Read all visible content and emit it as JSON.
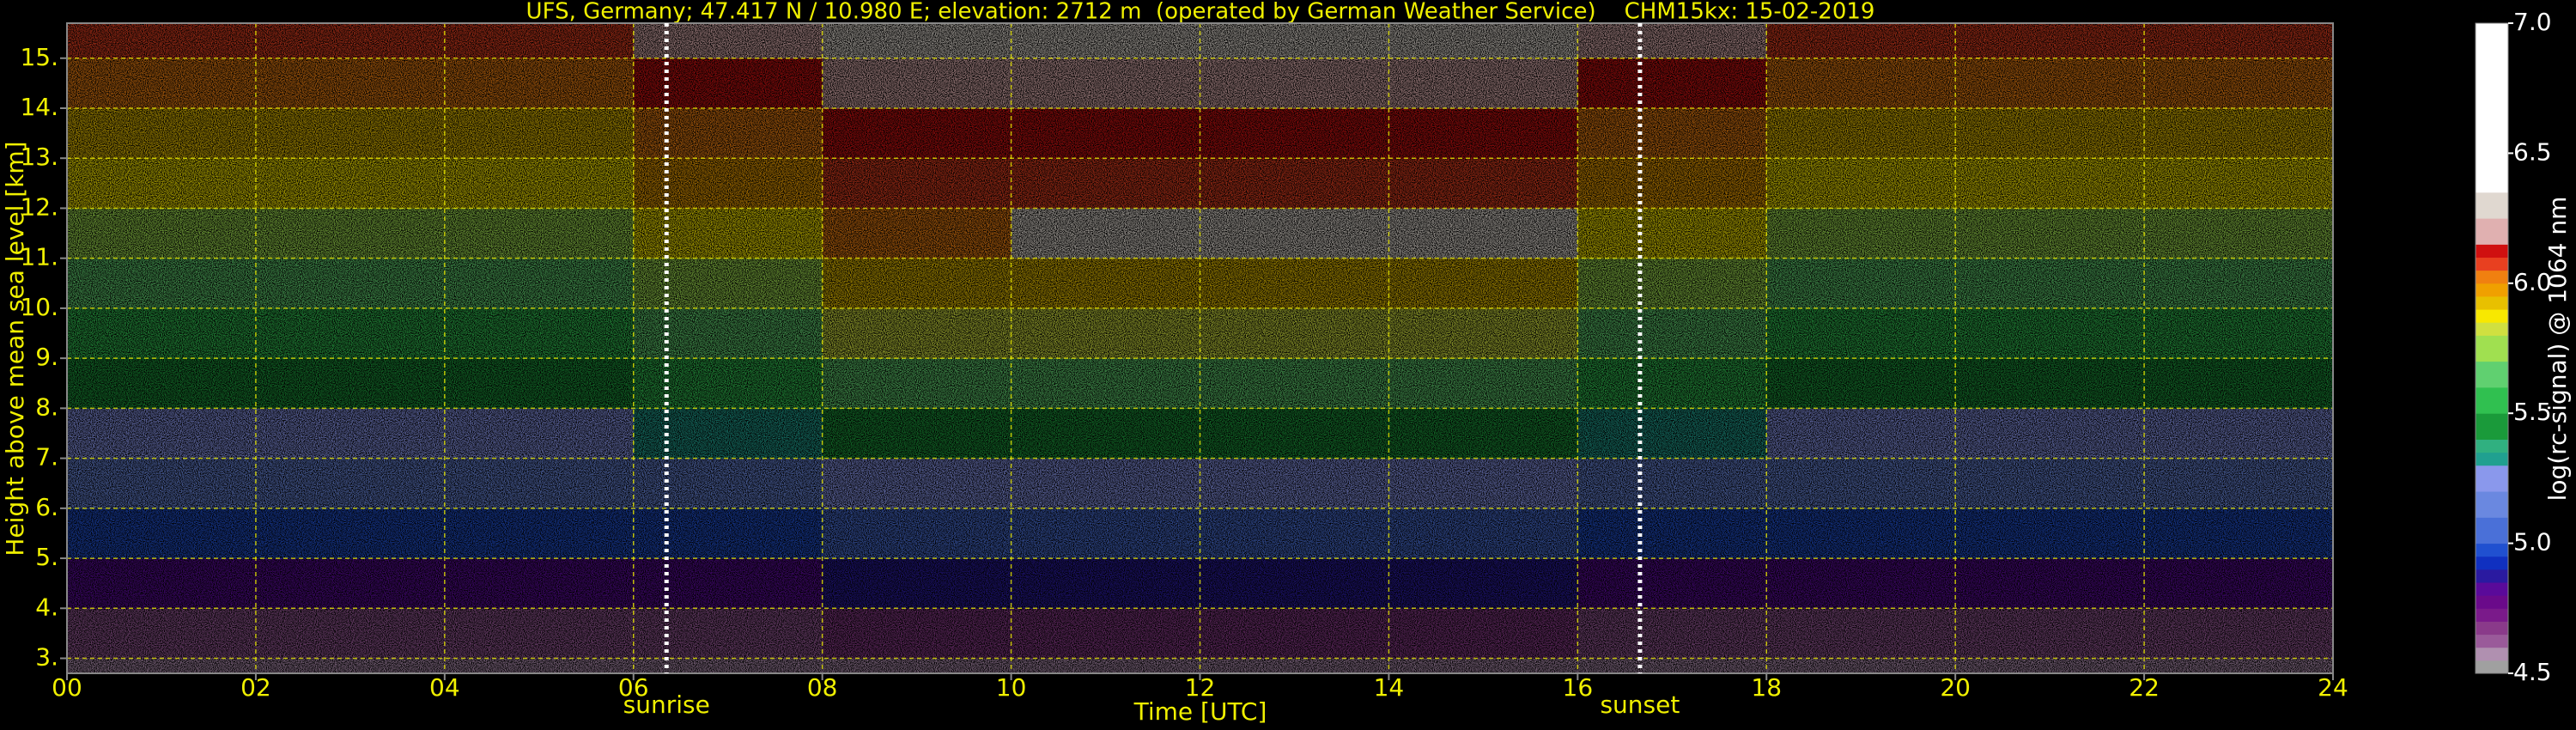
{
  "chart_data": {
    "type": "heatmap",
    "title": "UFS, Germany; 47.417 N / 10.980 E; elevation: 2712 m  (operated by German Weather Service)    CHM15kx: 15-02-2019",
    "x_label": "Time [UTC]",
    "y_label": "Height above mean sea level [km]",
    "x_edges": [
      0,
      2,
      4,
      6,
      8,
      10,
      12,
      14,
      16,
      18,
      20,
      22,
      24
    ],
    "y_edges": [
      2.7,
      3,
      4,
      5,
      6,
      7,
      8,
      9,
      10,
      11,
      12,
      13,
      14,
      15,
      15.7
    ],
    "z": [
      [
        4.55,
        4.55,
        4.55,
        4.55,
        4.55,
        4.55,
        4.55,
        4.55,
        4.55,
        4.55,
        4.55,
        4.55
      ],
      [
        4.6,
        4.6,
        4.6,
        4.62,
        4.65,
        4.65,
        4.65,
        4.65,
        4.62,
        4.6,
        4.6,
        4.6
      ],
      [
        4.8,
        4.8,
        4.8,
        4.82,
        4.85,
        4.85,
        4.85,
        4.85,
        4.82,
        4.8,
        4.8,
        4.8
      ],
      [
        4.95,
        4.95,
        4.95,
        4.97,
        5.0,
        5.0,
        5.0,
        5.0,
        4.97,
        4.95,
        4.95,
        4.95
      ],
      [
        5.1,
        5.1,
        5.1,
        5.15,
        5.2,
        5.2,
        5.2,
        5.2,
        5.15,
        5.1,
        5.1,
        5.1
      ],
      [
        5.25,
        5.25,
        5.25,
        5.32,
        5.4,
        5.4,
        5.4,
        5.4,
        5.32,
        5.25,
        5.25,
        5.25
      ],
      [
        5.4,
        5.4,
        5.4,
        5.5,
        5.6,
        5.6,
        5.6,
        5.6,
        5.5,
        5.4,
        5.4,
        5.4
      ],
      [
        5.5,
        5.5,
        5.5,
        5.65,
        5.8,
        5.8,
        5.8,
        5.8,
        5.65,
        5.5,
        5.5,
        5.5
      ],
      [
        5.6,
        5.6,
        5.6,
        5.75,
        5.9,
        5.9,
        5.9,
        5.9,
        5.75,
        5.6,
        5.6,
        5.6
      ],
      [
        5.75,
        5.75,
        5.75,
        5.87,
        6.0,
        6.25,
        6.25,
        6.25,
        5.87,
        5.75,
        5.75,
        5.75
      ],
      [
        5.85,
        5.85,
        5.85,
        5.95,
        6.05,
        6.05,
        6.05,
        6.05,
        5.95,
        5.85,
        5.85,
        5.85
      ],
      [
        5.9,
        5.9,
        5.9,
        6.0,
        6.1,
        6.1,
        6.1,
        6.1,
        6.0,
        5.9,
        5.9,
        5.9
      ],
      [
        6.0,
        6.0,
        6.0,
        6.1,
        6.2,
        6.2,
        6.2,
        6.2,
        6.1,
        6.0,
        6.0,
        6.0
      ],
      [
        6.05,
        6.05,
        6.05,
        6.17,
        6.3,
        6.3,
        6.3,
        6.3,
        6.17,
        6.05,
        6.05,
        6.05
      ]
    ],
    "xlim": [
      0,
      24
    ],
    "ylim": [
      2.7,
      15.7
    ],
    "xticks": [
      {
        "value": 0,
        "label": "00"
      },
      {
        "value": 2,
        "label": "02"
      },
      {
        "value": 4,
        "label": "04"
      },
      {
        "value": 6,
        "label": "06"
      },
      {
        "value": 8,
        "label": "08"
      },
      10,
      12,
      14,
      16,
      18,
      20,
      22,
      24
    ],
    "yticks": [
      {
        "value": 3,
        "label": "3."
      },
      {
        "value": 4,
        "label": "4."
      },
      {
        "value": 5,
        "label": "5."
      },
      {
        "value": 6,
        "label": "6."
      },
      {
        "value": 7,
        "label": "7."
      },
      {
        "value": 8,
        "label": "8."
      },
      {
        "value": 9,
        "label": "9."
      },
      {
        "value": 10,
        "label": "10."
      },
      {
        "value": 11,
        "label": "11."
      },
      {
        "value": 12,
        "label": "12."
      },
      {
        "value": 13,
        "label": "13."
      },
      {
        "value": 14,
        "label": "14."
      },
      {
        "value": 15,
        "label": "15."
      }
    ],
    "grid": true,
    "grid_color": "#e8e800",
    "annotations": [
      {
        "label": "sunrise",
        "x": 6.35
      },
      {
        "label": "sunset",
        "x": 16.66
      }
    ],
    "colorbar": {
      "label": "log(rc-signal) @ 1064 nm",
      "lim": [
        4.5,
        7.0
      ],
      "ticks": [
        4.5,
        {
          "value": 5,
          "label": "5.0"
        },
        5.5,
        {
          "value": 6,
          "label": "6.0"
        },
        6.5,
        {
          "value": 7,
          "label": "7.0"
        }
      ],
      "bounds": [
        4.5,
        4.55,
        4.6,
        4.65,
        4.7,
        4.75,
        4.8,
        4.85,
        4.9,
        4.95,
        5.0,
        5.1,
        5.2,
        5.3,
        5.35,
        5.4,
        5.5,
        5.6,
        5.7,
        5.8,
        5.85,
        5.9,
        5.95,
        6.0,
        6.05,
        6.1,
        6.15,
        6.25,
        6.35,
        7.0
      ],
      "colors": [
        "#a0a0a0",
        "#b090b0",
        "#9a5a9a",
        "#8a3a8a",
        "#7a1a8a",
        "#6a0a8a",
        "#5a0a9a",
        "#2a1aa0",
        "#1030c0",
        "#2050d0",
        "#4a70d8",
        "#6a88e0",
        "#8a98ec",
        "#20a090",
        "#30b080",
        "#1a9a3a",
        "#30c050",
        "#60d070",
        "#a0e050",
        "#d0e040",
        "#f8e800",
        "#e8c000",
        "#f0a000",
        "#f08010",
        "#e84020",
        "#d01010",
        "#e0b0b0",
        "#e0d8d0",
        "#ffffff"
      ]
    }
  }
}
